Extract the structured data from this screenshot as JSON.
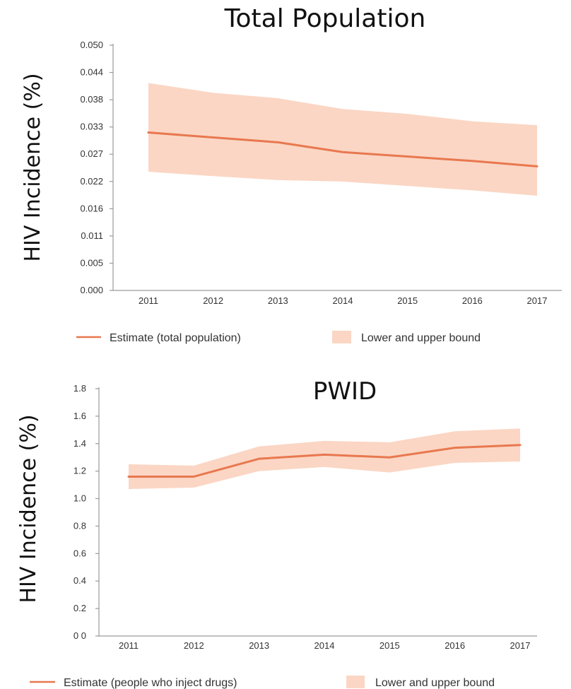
{
  "chart_data": [
    {
      "type": "line",
      "title": "Total Population",
      "ylabel": "HIV Incidence (%)",
      "xlabel": "",
      "x": [
        "2011",
        "2012",
        "2013",
        "2014",
        "2015",
        "2016",
        "2017"
      ],
      "ylim": [
        0,
        0.05
      ],
      "y_ticks": [
        "0.000",
        "0.005",
        "0.011",
        "0.016",
        "0.022",
        "0.027",
        "0.033",
        "0.038",
        "0.044",
        "0.050"
      ],
      "series": [
        {
          "name": "Estimate (total population)",
          "color": "#e8784f",
          "values": [
            0.0322,
            0.0312,
            0.0302,
            0.0282,
            0.0273,
            0.0264,
            0.0253
          ]
        }
      ],
      "bounds": {
        "name": "Lower and upper bound",
        "color": "#fbd6c4",
        "upper": [
          0.0423,
          0.0403,
          0.0392,
          0.037,
          0.036,
          0.0345,
          0.0337
        ],
        "lower": [
          0.0242,
          0.0233,
          0.0225,
          0.0222,
          0.0213,
          0.0204,
          0.0193
        ]
      },
      "legend_position": "bottom",
      "grid": false
    },
    {
      "type": "line",
      "title": "PWID",
      "ylabel": "HIV Incidence (%)",
      "xlabel": "",
      "x": [
        "2011",
        "2012",
        "2013",
        "2014",
        "2015",
        "2016",
        "2017"
      ],
      "ylim": [
        0,
        1.8
      ],
      "y_ticks": [
        "0 0",
        "0.2",
        "0.4",
        "0.6",
        "0.8",
        "1.0",
        "1.2",
        "1.4",
        "1.6",
        "1.8"
      ],
      "series": [
        {
          "name": "Estimate (people who inject drugs)",
          "color": "#e8784f",
          "values": [
            1.16,
            1.16,
            1.29,
            1.32,
            1.3,
            1.37,
            1.39
          ]
        }
      ],
      "bounds": {
        "name": "Lower and upper bound",
        "color": "#fbd6c4",
        "upper": [
          1.25,
          1.24,
          1.38,
          1.42,
          1.41,
          1.49,
          1.51
        ],
        "lower": [
          1.07,
          1.08,
          1.2,
          1.23,
          1.19,
          1.26,
          1.27
        ]
      },
      "legend_position": "bottom",
      "grid": false
    }
  ]
}
